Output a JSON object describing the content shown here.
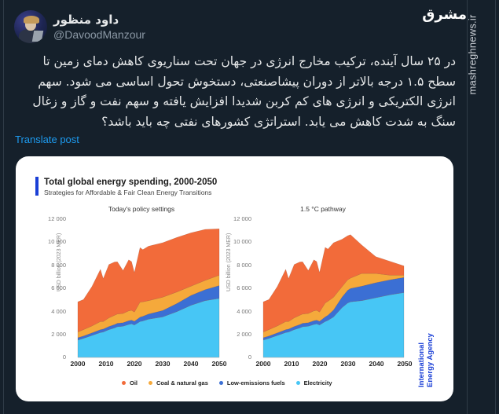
{
  "post": {
    "author": {
      "display_name": "داود منظور",
      "handle": "@DavoodManzour"
    },
    "text": "در ۲۵ سال آینده، ترکیب مخارج انرژی در جهان تحت سناریوی کاهش دمای زمین تا سطح ۱.۵ درجه بالاتر از دوران پیشاصنعتی، دستخوش تحول اساسی می شود. سهم انرژی الکتریکی و انرژی های کم کربن شدیدا افزایش یافته و سهم نفت و گاز و زغال سنگ به شدت کاهش می یابد. استراتژی کشورهای نفتی چه باید باشد؟",
    "translate_label": "Translate post"
  },
  "watermark": {
    "site": "mashreghnews.ir",
    "logo_text": "مشرق"
  },
  "media": {
    "title": "Total global energy spending, 2000-2050",
    "subtitle": "Strategies for Affordable & Fair Clean Energy Transitions",
    "source": "International Energy Agency",
    "source_line1": "International",
    "source_line2": "Energy Agency",
    "ylabel": "USD billion (2023 MER)",
    "yticks": [
      "12 000",
      "10 000",
      "8 000",
      "6 000",
      "4 000",
      "2 000",
      "0"
    ],
    "xticks": [
      "2000",
      "2010",
      "2020",
      "2030",
      "2040",
      "2050"
    ],
    "panels": [
      {
        "title": "Today's policy settings"
      },
      {
        "title": "1.5 °C pathway"
      }
    ],
    "legend": [
      {
        "label": "Oil",
        "color": "#f26b3a"
      },
      {
        "label": "Coal & natural gas",
        "color": "#f5a93b"
      },
      {
        "label": "Low-emissions fuels",
        "color": "#3b6fd4"
      },
      {
        "label": "Electricity",
        "color": "#47c6f5"
      }
    ]
  },
  "chart_data": [
    {
      "type": "area",
      "title": "Today's policy settings",
      "xlabel": "",
      "ylabel": "USD billion (2023 MER)",
      "ylim": [
        0,
        12000
      ],
      "stacked": true,
      "x": [
        2000,
        2002,
        2005,
        2008,
        2009,
        2011,
        2013,
        2014,
        2016,
        2018,
        2019,
        2020,
        2022,
        2023,
        2025,
        2030,
        2035,
        2040,
        2045,
        2050
      ],
      "series": [
        {
          "name": "Electricity",
          "values": [
            1500,
            1650,
            1900,
            2150,
            2200,
            2400,
            2550,
            2650,
            2700,
            2850,
            2900,
            2800,
            3100,
            3150,
            3300,
            3500,
            3950,
            4500,
            4900,
            5100
          ]
        },
        {
          "name": "Low-emissions fuels",
          "values": [
            200,
            200,
            220,
            250,
            250,
            270,
            290,
            300,
            300,
            320,
            320,
            320,
            380,
            400,
            450,
            550,
            700,
            850,
            950,
            1100
          ]
        },
        {
          "name": "Coal & natural gas",
          "values": [
            500,
            550,
            600,
            700,
            650,
            750,
            800,
            800,
            800,
            850,
            850,
            800,
            1300,
            1250,
            1150,
            1150,
            1000,
            800,
            800,
            900
          ]
        },
        {
          "name": "Oil",
          "values": [
            2600,
            2600,
            3400,
            4500,
            3700,
            4600,
            4600,
            4500,
            3700,
            4400,
            4200,
            3400,
            4700,
            4500,
            4700,
            4700,
            4700,
            4600,
            4400,
            4000
          ]
        }
      ],
      "totals": [
        4800,
        5000,
        6120,
        7600,
        6800,
        8020,
        8240,
        8250,
        7500,
        8420,
        8270,
        7320,
        9480,
        9300,
        9600,
        9900,
        10350,
        10750,
        11050,
        11100
      ]
    },
    {
      "type": "area",
      "title": "1.5 °C pathway",
      "xlabel": "",
      "ylabel": "USD billion (2023 MER)",
      "ylim": [
        0,
        12000
      ],
      "stacked": true,
      "x": [
        2000,
        2002,
        2005,
        2008,
        2009,
        2011,
        2013,
        2014,
        2016,
        2018,
        2019,
        2020,
        2022,
        2023,
        2025,
        2028,
        2030,
        2031,
        2035,
        2040,
        2045,
        2050
      ],
      "series": [
        {
          "name": "Electricity",
          "values": [
            1500,
            1650,
            1900,
            2150,
            2200,
            2400,
            2550,
            2650,
            2700,
            2850,
            2900,
            2800,
            3100,
            3200,
            3500,
            4300,
            4700,
            4800,
            4900,
            5150,
            5400,
            5600
          ]
        },
        {
          "name": "Low-emissions fuels",
          "values": [
            200,
            200,
            220,
            250,
            250,
            270,
            290,
            300,
            300,
            320,
            320,
            320,
            400,
            450,
            600,
            900,
            1100,
            1150,
            1250,
            1300,
            1300,
            1300
          ]
        },
        {
          "name": "Coal & natural gas",
          "values": [
            500,
            550,
            600,
            700,
            650,
            750,
            800,
            800,
            800,
            850,
            850,
            800,
            1200,
            1200,
            1100,
            900,
            900,
            900,
            1100,
            800,
            400,
            200
          ]
        },
        {
          "name": "Oil",
          "values": [
            2600,
            2600,
            3400,
            4500,
            3700,
            4600,
            4600,
            4500,
            3700,
            4400,
            4200,
            3400,
            4800,
            4500,
            4700,
            4100,
            3800,
            3750,
            2450,
            1450,
            1200,
            800
          ]
        }
      ],
      "totals": [
        4800,
        5000,
        6120,
        7600,
        6800,
        8020,
        8240,
        8250,
        7500,
        8420,
        8270,
        7320,
        9500,
        9350,
        9900,
        10200,
        10500,
        10600,
        9700,
        8700,
        8300,
        7900
      ]
    }
  ]
}
